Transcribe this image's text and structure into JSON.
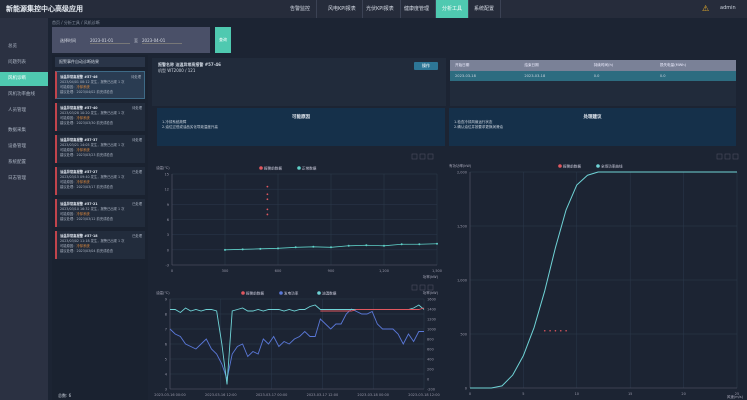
{
  "header": {
    "title": "新能源集控中心高级应用",
    "nav": [
      "告警监控",
      "风电KPI报表",
      "光伏KPI报表",
      "健康度管理",
      "分析工具",
      "系统配置"
    ],
    "active": 4,
    "user": "admin"
  },
  "sidebar": {
    "items": [
      "总览",
      "问题列表",
      "风机诊断",
      "风机功率曲线",
      "人员管理",
      "数据采集",
      "设备管理",
      "系统配置",
      "日志管理"
    ],
    "active": 2
  },
  "breadcrumb": "首页 / 分析工具 / 风机诊断",
  "filter": {
    "label": "选择时间",
    "start": "2023-01-01",
    "sep": "至",
    "end": "2023-04-01",
    "query": "查询"
  },
  "event_list": {
    "title": "报警事件自动诊断结果",
    "cards": [
      {
        "title": "油温异常高报警 #57-46",
        "status": "待处理",
        "l1": "2023/04/01 08:12 发生，报警已出现 1 次",
        "l2": "可能原因：",
        "tag": "冷却系统",
        "l3": "建议处理：2023/04/02 前完成检查"
      },
      {
        "title": "油温异常高报警 #57-40",
        "status": "待处理",
        "l1": "2023/03/28 10:20 发生，报警已出现 1 次",
        "l2": "可能原因：",
        "tag": "冷却系统",
        "l3": "建议处理：2023/03/30 前完成检查"
      },
      {
        "title": "油温异常高报警 #57-37",
        "status": "待处理",
        "l1": "2023/03/21 14:05 发生，报警已出现 1 次",
        "l2": "可能原因：",
        "tag": "冷却系统",
        "l3": "建议处理：2023/03/23 前完成检查"
      },
      {
        "title": "油温异常高报警 #57-27",
        "status": "已处理",
        "l1": "2023/03/15 09:40 发生，报警已出现 1 次",
        "l2": "可能原因：",
        "tag": "冷却系统",
        "l3": "建议处理：2023/03/17 前完成检查"
      },
      {
        "title": "油温异常高报警 #57-21",
        "status": "已处理",
        "l1": "2023/03/10 16:32 发生，报警已出现 1 次",
        "l2": "可能原因：",
        "tag": "冷却系统",
        "l3": "建议处理：2023/03/12 前完成检查"
      },
      {
        "title": "油温异常高报警 #57-18",
        "status": "已处理",
        "l1": "2023/03/02 11:18 发生，报警已出现 1 次",
        "l2": "可能原因：",
        "tag": "冷却系统",
        "l3": "建议处理：2023/03/04 前完成检查"
      }
    ],
    "total": "总数: 6"
  },
  "info": {
    "line1": "报警名称 油温异常高报警 #57-46",
    "line2": "机型 WT2000 / 121",
    "op": "操作"
  },
  "table": {
    "headers": [
      "开始日期",
      "结束日期",
      "持续时间(h)",
      "损失电量(MWh)"
    ],
    "rows": [
      [
        "2023-03-18",
        "2023-03-18",
        "0.0",
        "0.0"
      ]
    ]
  },
  "reasons": {
    "title": "可能原因",
    "lines": [
      "1.冷却系统故障",
      "2.油位过低或油品劣化导致温度升高"
    ]
  },
  "advice": {
    "title": "处理建议",
    "lines": [
      "1.检查冷却风扇运行状态",
      "2.确认油位并按要求更换润滑油"
    ]
  },
  "chart_data": [
    {
      "type": "scatter",
      "ylabel": "油温(℃)",
      "xlabel": "功率(kW)",
      "legend": [
        "报警前数据",
        "正常数据"
      ],
      "xlim": [
        0,
        1500
      ],
      "ylim": [
        -3,
        15
      ],
      "xticks": [
        "0",
        "300",
        "600",
        "900",
        "1,200",
        "1,500"
      ],
      "yticks": [
        "-3",
        "0",
        "3",
        "6",
        "9",
        "12",
        "15"
      ],
      "series": [
        {
          "name": "报警前数据",
          "color": "#e0575f",
          "x": [
            540,
            540,
            540,
            540,
            540
          ],
          "y": [
            7,
            8,
            10,
            11,
            12.5
          ]
        },
        {
          "name": "正常数据",
          "color": "#5fd0c8",
          "x": [
            300,
            400,
            500,
            600,
            700,
            800,
            900,
            1000,
            1100,
            1200,
            1300,
            1400,
            1500
          ],
          "y": [
            0,
            0.1,
            0.2,
            0.3,
            0.5,
            0.6,
            0.5,
            0.8,
            0.9,
            0.8,
            1.1,
            1.1,
            1.2
          ]
        }
      ]
    },
    {
      "type": "line",
      "ylabel": "油温(℃)",
      "y2label": "功率(kW)",
      "legend": [
        "报警前数据",
        "发电功率",
        "油温数据"
      ],
      "xticks": [
        "2023-03-16 00:00",
        "2023-03-16 12:00",
        "2023-03-17 00:00",
        "2023-03-17 12:00",
        "2023-03-18 00:00",
        "2023-03-18 12:00"
      ],
      "yticks": [
        "3",
        "4",
        "5",
        "6",
        "7",
        "8",
        "9"
      ],
      "y2ticks": [
        "-200",
        "0",
        "200",
        "400",
        "600",
        "800",
        "1000",
        "1200",
        "1400",
        "1600"
      ],
      "series": [
        {
          "name": "油温数据",
          "color": "#6fd3d6",
          "y": [
            8.3,
            8.3,
            8.1,
            8.4,
            8.2,
            8.3,
            8.2,
            8.3,
            8.3,
            8.2,
            6,
            3.3,
            8.2,
            8.3,
            8.4,
            8.2,
            8.2,
            8.3,
            8.2,
            8.3,
            8.3,
            8.3,
            8.2,
            8.3,
            8.2,
            8.3,
            8.3,
            8.5,
            8.6,
            8.3,
            8.3,
            8.3,
            8.3,
            8.3,
            8.3,
            8.3,
            8.3,
            8.3,
            8.3,
            8.3,
            8.3,
            8.3,
            8.3,
            8.3,
            8.3,
            8.3,
            8.3,
            8.4,
            8.6,
            8.3
          ]
        },
        {
          "name": "发电功率",
          "color": "#5a78d8",
          "y": [
            1000,
            900,
            850,
            700,
            650,
            600,
            700,
            800,
            600,
            500,
            300,
            0,
            500,
            650,
            700,
            450,
            550,
            500,
            800,
            700,
            850,
            650,
            750,
            700,
            800,
            850,
            950,
            850,
            850,
            1200,
            1100,
            1000,
            1100,
            1100,
            1300,
            1400,
            1350,
            1300,
            1300,
            1350,
            1100,
            1000,
            1000,
            1000,
            900,
            700,
            900,
            750,
            950,
            950
          ]
        },
        {
          "name": "报警前数据",
          "color": "#e0575f",
          "start": 29,
          "y": [
            8.2,
            8.2,
            8.2,
            8.2,
            8.2,
            8.2,
            8.2,
            8.3,
            8.3,
            8.3,
            8.3,
            8.3,
            8.3,
            8.3,
            8.3,
            8.3,
            8.3,
            8.3,
            8.3,
            8.3,
            8.4
          ]
        }
      ],
      "ylim": [
        3,
        9
      ],
      "y2lim": [
        -200,
        1600
      ]
    },
    {
      "type": "line",
      "ylabel": "有功功率(kW)",
      "xlabel": "风速(m/s)",
      "legend": [
        "报警前数据",
        "全场功率曲线"
      ],
      "xlim": [
        0,
        25
      ],
      "ylim": [
        0,
        2000
      ],
      "xticks": [
        "0",
        "5",
        "10",
        "15",
        "20",
        "25"
      ],
      "yticks": [
        "0",
        "500",
        "1,000",
        "1,500",
        "2,000"
      ],
      "series": [
        {
          "name": "全场功率曲线",
          "color": "#6fd3d6",
          "x": [
            0,
            2,
            3,
            4,
            5,
            6,
            7,
            8,
            9,
            10,
            11,
            12,
            13,
            14,
            25
          ],
          "y": [
            0,
            0,
            20,
            120,
            300,
            560,
            900,
            1300,
            1650,
            1880,
            1970,
            2000,
            2000,
            2000,
            2000
          ]
        },
        {
          "name": "报警前数据",
          "color": "#e0575f",
          "x": [
            7,
            7.5,
            8,
            8.5,
            9
          ],
          "y": [
            530,
            530,
            530,
            530,
            530
          ]
        }
      ]
    }
  ]
}
